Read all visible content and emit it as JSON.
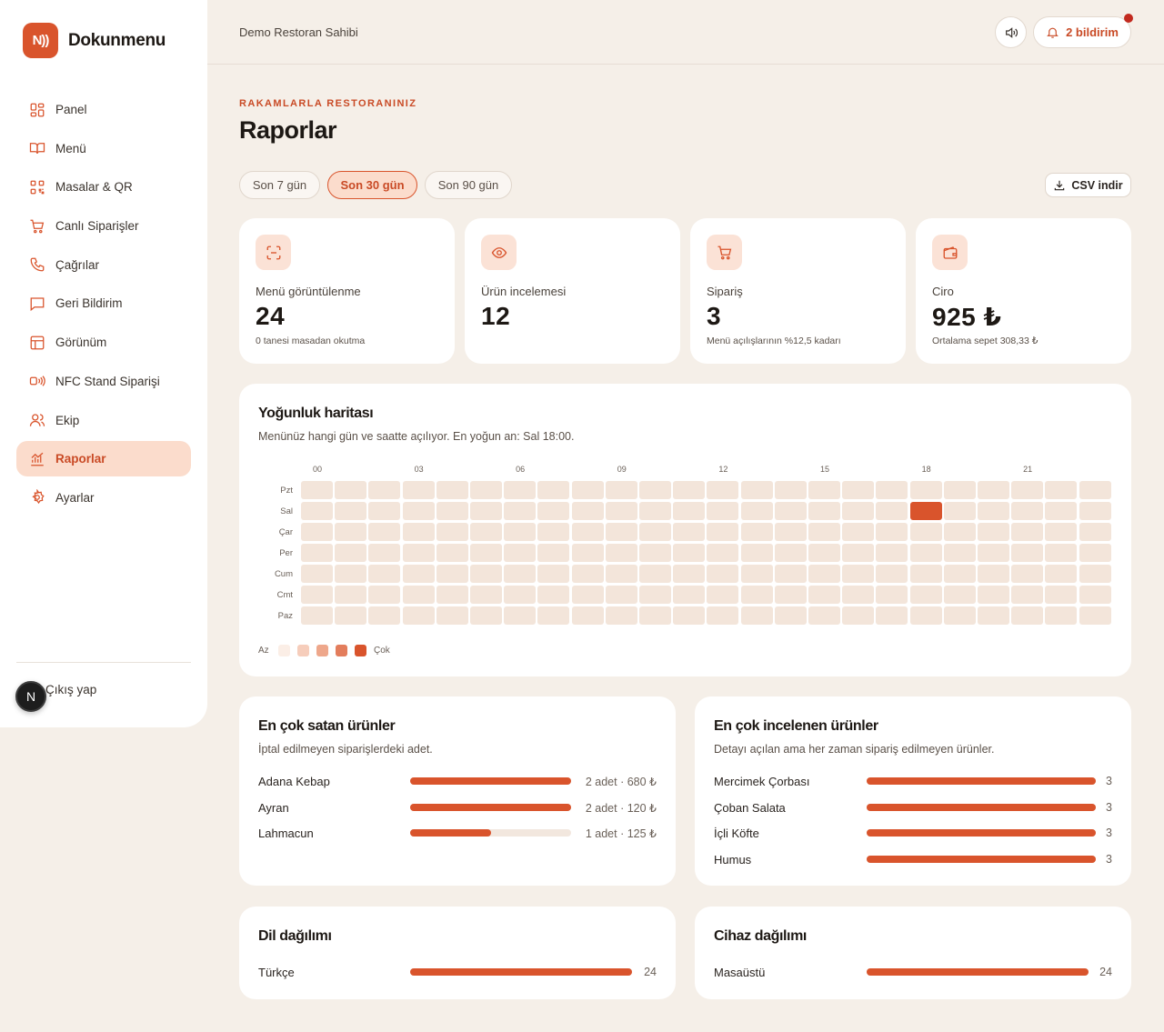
{
  "app": {
    "name": "Dokunmenu",
    "logo_text": "N))",
    "owner": "Demo Restoran Sahibi",
    "avatar_letter": "N",
    "accent": "#d9542c"
  },
  "sidebar": {
    "items": [
      {
        "label": "Panel",
        "icon": "dashboard-icon",
        "active": false
      },
      {
        "label": "Menü",
        "icon": "book-icon",
        "active": false
      },
      {
        "label": "Masalar & QR",
        "icon": "qr-icon",
        "active": false
      },
      {
        "label": "Canlı Siparişler",
        "icon": "cart-icon",
        "active": false
      },
      {
        "label": "Çağrılar",
        "icon": "phone-icon",
        "active": false
      },
      {
        "label": "Geri Bildirim",
        "icon": "chat-icon",
        "active": false
      },
      {
        "label": "Görünüm",
        "icon": "layout-icon",
        "active": false
      },
      {
        "label": "NFC Stand Siparişi",
        "icon": "nfc-icon",
        "active": false
      },
      {
        "label": "Ekip",
        "icon": "users-icon",
        "active": false
      },
      {
        "label": "Raporlar",
        "icon": "chart-icon",
        "active": true
      },
      {
        "label": "Ayarlar",
        "icon": "gear-icon",
        "active": false
      }
    ],
    "logout_label": "Çıkış yap"
  },
  "topbar": {
    "notifications_label": "2 bildirim"
  },
  "header": {
    "eyebrow": "RAKAMLARLA RESTORANINIZ",
    "title": "Raporlar"
  },
  "ranges": [
    {
      "label": "Son 7 gün",
      "active": false
    },
    {
      "label": "Son 30 gün",
      "active": true
    },
    {
      "label": "Son 90 gün",
      "active": false
    }
  ],
  "csv_label": "CSV indir",
  "stats": [
    {
      "icon": "scan-icon",
      "label": "Menü görüntülenme",
      "value": "24",
      "sub": "0 tanesi masadan okutma"
    },
    {
      "icon": "eye-icon",
      "label": "Ürün incelemesi",
      "value": "12",
      "sub": ""
    },
    {
      "icon": "cart-icon",
      "label": "Sipariş",
      "value": "3",
      "sub": "Menü açılışlarının %12,5 kadarı"
    },
    {
      "icon": "wallet-icon",
      "label": "Ciro",
      "value": "925 ₺",
      "sub": "Ortalama sepet 308,33 ₺"
    }
  ],
  "heatmap": {
    "title": "Yoğunluk haritası",
    "subtitle": "Menünüz hangi gün ve saatte açılıyor. En yoğun an: Sal 18:00.",
    "hour_labels": [
      "00",
      "03",
      "06",
      "09",
      "12",
      "15",
      "18",
      "21"
    ],
    "days": [
      "Pzt",
      "Sal",
      "Çar",
      "Per",
      "Cum",
      "Cmt",
      "Paz"
    ],
    "hours_count": 24,
    "peak": {
      "day": "Sal",
      "hour": 18
    },
    "legend_low": "Az",
    "legend_high": "Çok",
    "legend_colors": [
      "#fbeee6",
      "#f6cdbb",
      "#eea78b",
      "#e37d5c",
      "#d9542c"
    ],
    "empty_color": "#f3e5da"
  },
  "top_selling": {
    "title": "En çok satan ürünler",
    "subtitle": "İptal edilmeyen siparişlerdeki adet.",
    "rows": [
      {
        "name": "Adana Kebap",
        "fraction": 1.0,
        "value": "2 adet · 680 ₺"
      },
      {
        "name": "Ayran",
        "fraction": 1.0,
        "value": "2 adet · 120 ₺"
      },
      {
        "name": "Lahmacun",
        "fraction": 0.5,
        "value": "1 adet · 125 ₺"
      }
    ]
  },
  "most_viewed": {
    "title": "En çok incelenen ürünler",
    "subtitle": "Detayı açılan ama her zaman sipariş edilmeyen ürünler.",
    "rows": [
      {
        "name": "Mercimek Çorbası",
        "fraction": 1.0,
        "value": "3"
      },
      {
        "name": "Çoban Salata",
        "fraction": 1.0,
        "value": "3"
      },
      {
        "name": "İçli Köfte",
        "fraction": 1.0,
        "value": "3"
      },
      {
        "name": "Humus",
        "fraction": 1.0,
        "value": "3"
      }
    ]
  },
  "languages": {
    "title": "Dil dağılımı",
    "rows": [
      {
        "name": "Türkçe",
        "fraction": 1.0,
        "value": "24"
      }
    ]
  },
  "devices": {
    "title": "Cihaz dağılımı",
    "rows": [
      {
        "name": "Masaüstü",
        "fraction": 1.0,
        "value": "24"
      }
    ]
  }
}
